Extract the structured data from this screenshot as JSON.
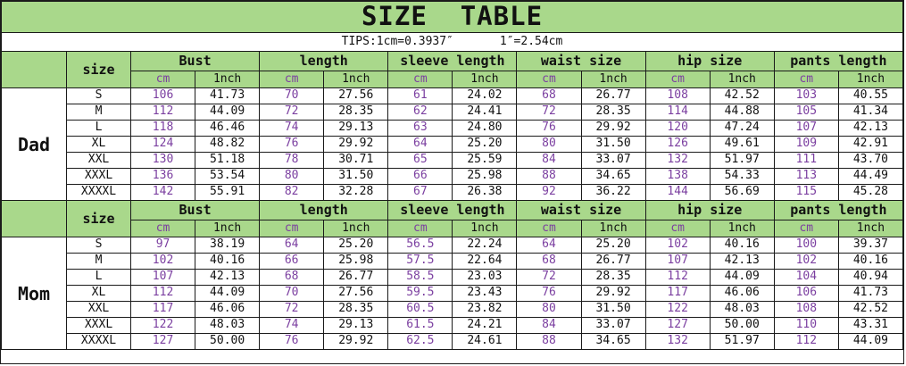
{
  "title": "SIZE  TABLE",
  "tips": {
    "part1": "TIPS:1cm=0.3937″",
    "part2": "1″=2.54cm"
  },
  "columns": {
    "size_label": "size",
    "groups": [
      "Bust",
      "length",
      "sleeve length",
      "waist size",
      "hip size",
      "pants length"
    ],
    "unit_cm": "cm",
    "unit_inch": "1nch"
  },
  "sections": [
    {
      "label": "Dad",
      "rows": [
        {
          "size": "S",
          "values": [
            "106",
            "41.73",
            "70",
            "27.56",
            "61",
            "24.02",
            "68",
            "26.77",
            "108",
            "42.52",
            "103",
            "40.55"
          ]
        },
        {
          "size": "M",
          "values": [
            "112",
            "44.09",
            "72",
            "28.35",
            "62",
            "24.41",
            "72",
            "28.35",
            "114",
            "44.88",
            "105",
            "41.34"
          ]
        },
        {
          "size": "L",
          "values": [
            "118",
            "46.46",
            "74",
            "29.13",
            "63",
            "24.80",
            "76",
            "29.92",
            "120",
            "47.24",
            "107",
            "42.13"
          ]
        },
        {
          "size": "XL",
          "values": [
            "124",
            "48.82",
            "76",
            "29.92",
            "64",
            "25.20",
            "80",
            "31.50",
            "126",
            "49.61",
            "109",
            "42.91"
          ]
        },
        {
          "size": "XXL",
          "values": [
            "130",
            "51.18",
            "78",
            "30.71",
            "65",
            "25.59",
            "84",
            "33.07",
            "132",
            "51.97",
            "111",
            "43.70"
          ]
        },
        {
          "size": "XXXL",
          "values": [
            "136",
            "53.54",
            "80",
            "31.50",
            "66",
            "25.98",
            "88",
            "34.65",
            "138",
            "54.33",
            "113",
            "44.49"
          ]
        },
        {
          "size": "XXXXL",
          "values": [
            "142",
            "55.91",
            "82",
            "32.28",
            "67",
            "26.38",
            "92",
            "36.22",
            "144",
            "56.69",
            "115",
            "45.28"
          ]
        }
      ]
    },
    {
      "label": "Mom",
      "rows": [
        {
          "size": "S",
          "values": [
            "97",
            "38.19",
            "64",
            "25.20",
            "56.5",
            "22.24",
            "64",
            "25.20",
            "102",
            "40.16",
            "100",
            "39.37"
          ]
        },
        {
          "size": "M",
          "values": [
            "102",
            "40.16",
            "66",
            "25.98",
            "57.5",
            "22.64",
            "68",
            "26.77",
            "107",
            "42.13",
            "102",
            "40.16"
          ]
        },
        {
          "size": "L",
          "values": [
            "107",
            "42.13",
            "68",
            "26.77",
            "58.5",
            "23.03",
            "72",
            "28.35",
            "112",
            "44.09",
            "104",
            "40.94"
          ]
        },
        {
          "size": "XL",
          "values": [
            "112",
            "44.09",
            "70",
            "27.56",
            "59.5",
            "23.43",
            "76",
            "29.92",
            "117",
            "46.06",
            "106",
            "41.73"
          ]
        },
        {
          "size": "XXL",
          "values": [
            "117",
            "46.06",
            "72",
            "28.35",
            "60.5",
            "23.82",
            "80",
            "31.50",
            "122",
            "48.03",
            "108",
            "42.52"
          ]
        },
        {
          "size": "XXXL",
          "values": [
            "122",
            "48.03",
            "74",
            "29.13",
            "61.5",
            "24.21",
            "84",
            "33.07",
            "127",
            "50.00",
            "110",
            "43.31"
          ]
        },
        {
          "size": "XXXXL",
          "values": [
            "127",
            "50.00",
            "76",
            "29.92",
            "62.5",
            "24.61",
            "88",
            "34.65",
            "132",
            "51.97",
            "112",
            "44.09"
          ]
        }
      ]
    }
  ],
  "colors": {
    "header_green": "#a9d88b",
    "cm_text_purple": "#7b3fa0",
    "inch_text_black": "#111111",
    "border_black": "#1a1a1a"
  }
}
